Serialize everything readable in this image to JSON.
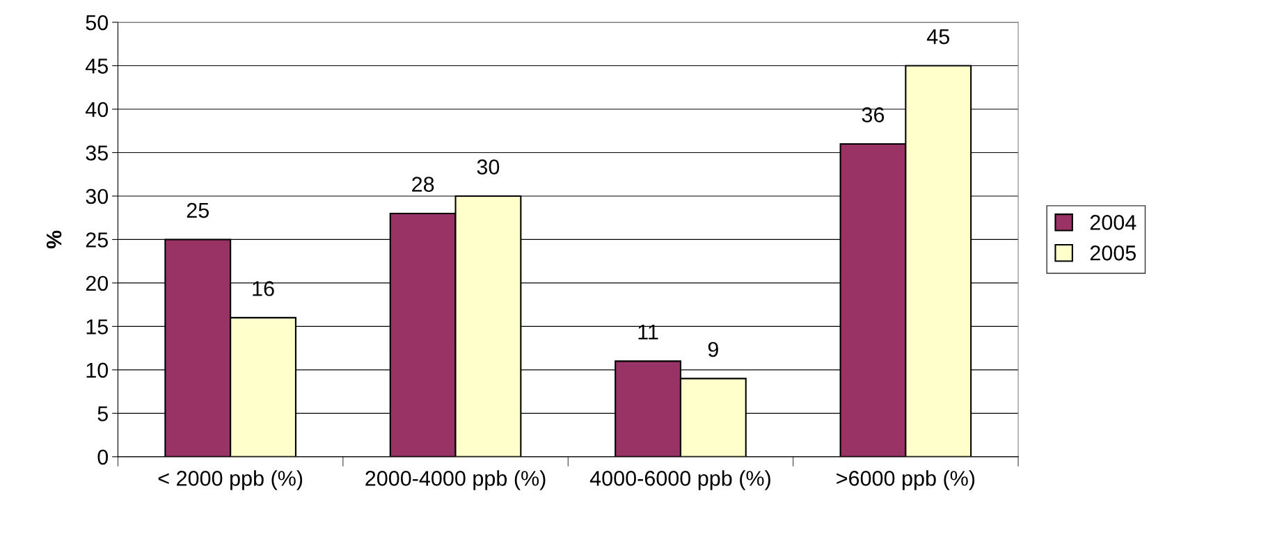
{
  "chart_data": {
    "type": "bar",
    "ylabel": "%",
    "categories": [
      "< 2000 ppb (%)",
      "2000-4000 ppb (%)",
      "4000-6000 ppb (%)",
      ">6000 ppb (%)"
    ],
    "series": [
      {
        "name": "2004",
        "color": "#993366",
        "values": [
          25,
          28,
          11,
          36
        ]
      },
      {
        "name": "2005",
        "color": "#ffffcc",
        "values": [
          16,
          30,
          9,
          45
        ]
      }
    ],
    "ylim": [
      0,
      50
    ],
    "yticks": [
      0,
      5,
      10,
      15,
      20,
      25,
      30,
      35,
      40,
      45,
      50
    ],
    "grid": "y",
    "legend": "right",
    "data_labels": true
  }
}
